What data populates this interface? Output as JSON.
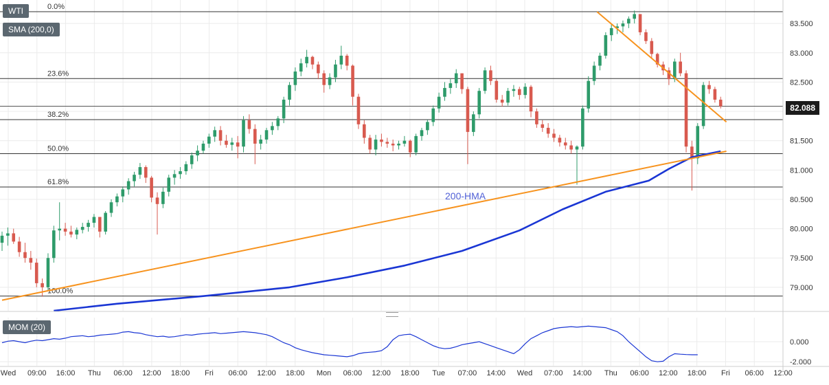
{
  "symbol": "WTI",
  "indicator_label": "SMA (200,0)",
  "momentum_label": "MOM (20)",
  "last_price": "82.088",
  "annotation": "200-HMA",
  "colors": {
    "up": "#2e9b6a",
    "down": "#d85a4f",
    "hma": "#1a36d4",
    "trendline": "#f7931e",
    "momentum": "#1a36d4",
    "fib": "#333333",
    "grid": "#ebebeb"
  },
  "chart_data": [
    {
      "type": "candlestick",
      "title": "",
      "ylim": [
        78.6,
        83.9
      ],
      "y_ticks": [
        "79.000",
        "79.500",
        "80.000",
        "80.500",
        "81.000",
        "81.500",
        "82.000",
        "82.500",
        "83.000",
        "83.500"
      ],
      "x_ticks": [
        "Wed",
        "09:00",
        "16:00",
        "Thu",
        "06:00",
        "12:00",
        "18:00",
        "Fri",
        "06:00",
        "12:00",
        "18:00",
        "Mon",
        "06:00",
        "12:00",
        "18:00",
        "Tue",
        "07:00",
        "14:00",
        "Wed",
        "07:00",
        "14:00",
        "Thu",
        "06:00",
        "12:00",
        "18:00",
        "Fri",
        "06:00",
        "12:00"
      ],
      "fibonacci": [
        {
          "label": "0.0%",
          "value": 83.7
        },
        {
          "label": "23.6%",
          "value": 82.56
        },
        {
          "label": "38.2%",
          "value": 81.86
        },
        {
          "label": "50.0%",
          "value": 81.28
        },
        {
          "label": "61.8%",
          "value": 80.71
        },
        {
          "label": "100.0%",
          "value": 78.85
        }
      ],
      "last_value": 82.088,
      "series": [
        {
          "name": "200-HMA",
          "type": "line",
          "x": [
            18,
            40,
            70,
            100,
            120,
            140,
            160,
            180,
            195,
            210,
            225,
            232,
            240,
            250
          ],
          "values": [
            78.6,
            78.72,
            78.85,
            79.0,
            79.17,
            79.37,
            79.62,
            79.97,
            80.33,
            80.63,
            80.82,
            81.02,
            81.22,
            81.32
          ]
        },
        {
          "name": "Support",
          "type": "line",
          "x": [
            0,
            252
          ],
          "values": [
            78.78,
            81.32
          ]
        },
        {
          "name": "Resistance",
          "type": "line",
          "x": [
            207,
            252
          ],
          "values": [
            83.7,
            81.82
          ]
        }
      ],
      "candles": [
        [
          79.76,
          79.95,
          79.62,
          79.88
        ],
        [
          79.88,
          80.02,
          79.71,
          79.92
        ],
        [
          79.92,
          80.0,
          79.74,
          79.78
        ],
        [
          79.78,
          79.86,
          79.52,
          79.6
        ],
        [
          79.6,
          79.76,
          79.42,
          79.5
        ],
        [
          79.5,
          79.62,
          79.3,
          79.42
        ],
        [
          79.42,
          79.49,
          79.0,
          79.07
        ],
        [
          79.07,
          79.15,
          78.84,
          79.0
        ],
        [
          79.0,
          79.58,
          78.95,
          79.5
        ],
        [
          79.5,
          80.05,
          79.42,
          79.97
        ],
        [
          79.97,
          80.45,
          79.8,
          80.0
        ],
        [
          80.0,
          80.1,
          79.88,
          79.95
        ],
        [
          79.95,
          80.05,
          79.85,
          79.9
        ],
        [
          79.9,
          80.02,
          79.82,
          79.98
        ],
        [
          79.98,
          80.1,
          79.92,
          80.03
        ],
        [
          80.03,
          80.15,
          79.95,
          80.1
        ],
        [
          80.1,
          80.25,
          80.02,
          80.2
        ],
        [
          80.2,
          80.18,
          79.85,
          79.95
        ],
        [
          79.95,
          80.3,
          79.9,
          80.27
        ],
        [
          80.27,
          80.5,
          80.2,
          80.45
        ],
        [
          80.45,
          80.6,
          80.38,
          80.55
        ],
        [
          80.55,
          80.72,
          80.45,
          80.67
        ],
        [
          80.67,
          80.86,
          80.58,
          80.81
        ],
        [
          80.81,
          80.97,
          80.72,
          80.92
        ],
        [
          80.92,
          81.12,
          80.85,
          81.05
        ],
        [
          81.05,
          81.08,
          80.78,
          80.87
        ],
        [
          80.87,
          80.9,
          80.45,
          80.53
        ],
        [
          80.53,
          80.62,
          79.9,
          80.42
        ],
        [
          80.42,
          80.7,
          80.35,
          80.63
        ],
        [
          80.63,
          80.92,
          80.55,
          80.87
        ],
        [
          80.87,
          81.0,
          80.75,
          80.93
        ],
        [
          80.93,
          81.05,
          80.85,
          80.98
        ],
        [
          80.98,
          81.15,
          80.92,
          81.1
        ],
        [
          81.1,
          81.3,
          81.02,
          81.25
        ],
        [
          81.25,
          81.42,
          81.15,
          81.33
        ],
        [
          81.33,
          81.5,
          81.28,
          81.45
        ],
        [
          81.45,
          81.62,
          81.38,
          81.57
        ],
        [
          81.57,
          81.74,
          81.48,
          81.68
        ],
        [
          81.68,
          81.75,
          81.42,
          81.5
        ],
        [
          81.5,
          81.6,
          81.38,
          81.43
        ],
        [
          81.43,
          81.55,
          81.33,
          81.47
        ],
        [
          81.47,
          81.58,
          81.2,
          81.4
        ],
        [
          81.4,
          81.92,
          81.3,
          81.85
        ],
        [
          81.85,
          81.95,
          81.62,
          81.7
        ],
        [
          81.7,
          81.78,
          81.1,
          81.45
        ],
        [
          81.45,
          81.6,
          81.35,
          81.52
        ],
        [
          81.52,
          81.72,
          81.45,
          81.68
        ],
        [
          81.68,
          81.82,
          81.6,
          81.75
        ],
        [
          81.75,
          81.92,
          81.68,
          81.88
        ],
        [
          81.88,
          82.25,
          81.8,
          82.2
        ],
        [
          82.2,
          82.5,
          82.1,
          82.45
        ],
        [
          82.45,
          82.75,
          82.35,
          82.68
        ],
        [
          82.68,
          82.9,
          82.6,
          82.82
        ],
        [
          82.82,
          83.05,
          82.75,
          82.93
        ],
        [
          82.93,
          82.95,
          82.72,
          82.8
        ],
        [
          82.8,
          82.85,
          82.55,
          82.65
        ],
        [
          82.65,
          82.7,
          82.32,
          82.45
        ],
        [
          82.45,
          82.65,
          82.38,
          82.58
        ],
        [
          82.58,
          82.88,
          82.5,
          82.8
        ],
        [
          82.8,
          83.12,
          82.72,
          82.95
        ],
        [
          82.95,
          82.98,
          82.7,
          82.78
        ],
        [
          82.78,
          82.8,
          82.1,
          82.25
        ],
        [
          82.25,
          82.3,
          81.7,
          81.78
        ],
        [
          81.78,
          81.85,
          81.45,
          81.55
        ],
        [
          81.55,
          81.6,
          81.28,
          81.35
        ],
        [
          81.35,
          81.6,
          81.25,
          81.52
        ],
        [
          81.52,
          81.62,
          81.4,
          81.48
        ],
        [
          81.48,
          81.55,
          81.38,
          81.45
        ],
        [
          81.45,
          81.52,
          81.32,
          81.42
        ],
        [
          81.42,
          81.5,
          81.35,
          81.45
        ],
        [
          81.45,
          81.58,
          81.4,
          81.5
        ],
        [
          81.5,
          81.52,
          81.22,
          81.3
        ],
        [
          81.3,
          81.62,
          81.25,
          81.58
        ],
        [
          81.58,
          81.72,
          81.5,
          81.68
        ],
        [
          81.68,
          81.86,
          81.6,
          81.82
        ],
        [
          81.82,
          82.1,
          81.75,
          82.05
        ],
        [
          82.05,
          82.32,
          81.98,
          82.25
        ],
        [
          82.25,
          82.5,
          82.18,
          82.4
        ],
        [
          82.4,
          82.55,
          82.3,
          82.48
        ],
        [
          82.48,
          82.72,
          82.4,
          82.65
        ],
        [
          82.65,
          82.62,
          82.3,
          82.38
        ],
        [
          82.38,
          82.42,
          81.1,
          81.65
        ],
        [
          81.65,
          82.0,
          81.58,
          81.95
        ],
        [
          81.95,
          82.4,
          81.88,
          82.35
        ],
        [
          82.35,
          82.75,
          82.3,
          82.7
        ],
        [
          82.7,
          82.78,
          82.45,
          82.52
        ],
        [
          82.52,
          82.55,
          82.15,
          82.2
        ],
        [
          82.2,
          82.28,
          82.08,
          82.15
        ],
        [
          82.15,
          82.4,
          82.1,
          82.35
        ],
        [
          82.35,
          82.45,
          82.25,
          82.38
        ],
        [
          82.38,
          82.42,
          82.2,
          82.28
        ],
        [
          82.28,
          82.48,
          82.22,
          82.42
        ],
        [
          82.42,
          82.45,
          81.9,
          82.0
        ],
        [
          82.0,
          82.05,
          81.72,
          81.78
        ],
        [
          81.78,
          81.85,
          81.65,
          81.72
        ],
        [
          81.72,
          81.8,
          81.55,
          81.62
        ],
        [
          81.62,
          81.7,
          81.48,
          81.55
        ],
        [
          81.55,
          81.6,
          81.4,
          81.47
        ],
        [
          81.47,
          81.55,
          81.35,
          81.42
        ],
        [
          81.42,
          81.5,
          81.28,
          81.35
        ],
        [
          81.35,
          81.42,
          80.75,
          81.4
        ],
        [
          81.4,
          82.1,
          81.35,
          82.05
        ],
        [
          82.05,
          82.6,
          81.98,
          82.52
        ],
        [
          82.52,
          82.85,
          82.45,
          82.78
        ],
        [
          82.78,
          83.0,
          82.7,
          82.95
        ],
        [
          82.95,
          83.35,
          82.9,
          83.3
        ],
        [
          83.3,
          83.48,
          83.2,
          83.42
        ],
        [
          83.42,
          83.5,
          83.32,
          83.45
        ],
        [
          83.45,
          83.55,
          83.35,
          83.5
        ],
        [
          83.5,
          83.62,
          83.42,
          83.58
        ],
        [
          83.58,
          83.72,
          83.5,
          83.66
        ],
        [
          83.66,
          83.65,
          83.3,
          83.35
        ],
        [
          83.35,
          83.4,
          83.15,
          83.2
        ],
        [
          83.2,
          83.25,
          82.9,
          82.98
        ],
        [
          82.98,
          83.0,
          82.75,
          82.8
        ],
        [
          82.8,
          82.85,
          82.62,
          82.7
        ],
        [
          82.7,
          82.75,
          82.45,
          82.55
        ],
        [
          82.55,
          82.9,
          82.5,
          82.85
        ],
        [
          82.85,
          83.0,
          82.6,
          82.65
        ],
        [
          82.65,
          82.7,
          81.3,
          81.4
        ],
        [
          81.4,
          81.5,
          80.65,
          81.2
        ],
        [
          81.2,
          81.8,
          81.1,
          81.75
        ],
        [
          81.75,
          82.5,
          81.7,
          82.45
        ],
        [
          82.45,
          82.52,
          82.3,
          82.38
        ],
        [
          82.38,
          82.42,
          82.15,
          82.2
        ],
        [
          82.2,
          82.25,
          82.05,
          82.088
        ]
      ]
    },
    {
      "type": "line",
      "title": "",
      "ylim": [
        -2.4,
        2.4
      ],
      "y_ticks": [
        "-2.000",
        "0.000"
      ],
      "series": [
        {
          "name": "MOM (20)",
          "values": [
            -0.1,
            0.05,
            0.1,
            0.0,
            -0.1,
            0.05,
            0.15,
            0.1,
            0.2,
            0.3,
            0.25,
            0.35,
            0.5,
            0.55,
            0.6,
            0.5,
            0.55,
            0.65,
            0.7,
            0.75,
            0.8,
            0.95,
            1.0,
            0.9,
            0.85,
            0.7,
            0.6,
            0.5,
            0.55,
            0.45,
            0.5,
            0.6,
            0.7,
            0.65,
            0.75,
            0.8,
            0.85,
            0.9,
            0.8,
            0.85,
            0.9,
            0.95,
            1.0,
            0.95,
            0.9,
            0.8,
            0.7,
            0.5,
            0.2,
            -0.1,
            -0.3,
            -0.6,
            -0.8,
            -0.95,
            -1.1,
            -1.2,
            -1.3,
            -1.35,
            -1.4,
            -1.45,
            -1.5,
            -1.4,
            -1.2,
            -1.1,
            -1.05,
            -1.0,
            -0.9,
            -0.5,
            0.2,
            0.6,
            0.7,
            0.75,
            0.5,
            0.2,
            -0.1,
            -0.4,
            -0.6,
            -0.7,
            -0.65,
            -0.5,
            -0.3,
            -0.2,
            -0.1,
            0.0,
            -0.2,
            -0.4,
            -0.6,
            -0.8,
            -1.0,
            -1.2,
            -0.8,
            -0.2,
            0.3,
            0.6,
            0.9,
            1.1,
            1.3,
            1.4,
            1.45,
            1.5,
            1.45,
            1.5,
            1.55,
            1.5,
            1.45,
            1.4,
            1.2,
            1.0,
            0.6,
            0.0,
            -0.5,
            -1.0,
            -1.5,
            -1.9,
            -2.0,
            -1.95,
            -1.5,
            -1.2,
            -1.25,
            -1.28,
            -1.3,
            -1.3
          ]
        }
      ]
    }
  ]
}
